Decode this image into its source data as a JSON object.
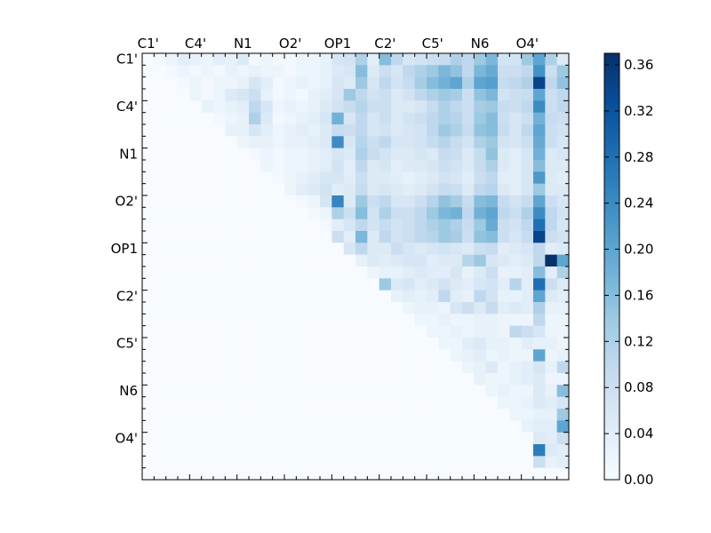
{
  "chart_data": {
    "type": "heatmap",
    "title": "",
    "xlabel": "",
    "ylabel": "",
    "n": 36,
    "x_tick_labels": [
      "C1'",
      "C4'",
      "N1",
      "O2'",
      "OP1",
      "C2'",
      "C5'",
      "N6",
      "O4'"
    ],
    "x_tick_label_position": "top",
    "y_tick_labels": [
      "C1'",
      "C4'",
      "N1",
      "O2'",
      "OP1",
      "C2'",
      "C5'",
      "N6",
      "O4'"
    ],
    "tick_label_every": 4,
    "value_range": [
      0,
      0.37
    ],
    "colormap": "Blues",
    "colormap_stops": [
      "#f7fbff",
      "#deebf7",
      "#c6dbef",
      "#9ecae1",
      "#6baed6",
      "#4292c6",
      "#2171b5",
      "#08519c",
      "#08306b"
    ],
    "colorbar": {
      "range": [
        0,
        0.37
      ],
      "ticks": [
        0.0,
        0.04,
        0.08,
        0.12,
        0.16,
        0.2,
        0.24,
        0.28,
        0.32,
        0.36
      ],
      "tick_labels": [
        "0.00",
        "0.04",
        "0.08",
        "0.12",
        "0.16",
        "0.20",
        "0.24",
        "0.28",
        "0.32",
        "0.36"
      ]
    },
    "rows": [
      [
        0.0,
        0.01,
        0.02,
        0.04,
        0.03,
        0.02,
        0.04,
        0.03,
        0.05,
        0.01,
        0.02,
        0.01,
        0.01,
        0.02,
        0.02,
        0.03,
        0.06,
        0.07,
        0.12,
        0.04,
        0.16,
        0.1,
        0.06,
        0.07,
        0.08,
        0.09,
        0.12,
        0.1,
        0.14,
        0.17,
        0.07,
        0.07,
        0.14,
        0.2,
        0.12,
        0.05
      ],
      [
        0,
        0,
        0.01,
        0.02,
        0.01,
        0.02,
        0.01,
        0.03,
        0.02,
        0.03,
        0.02,
        0.02,
        0.01,
        0.02,
        0.02,
        0.03,
        0.05,
        0.06,
        0.16,
        0.05,
        0.08,
        0.06,
        0.1,
        0.12,
        0.14,
        0.17,
        0.15,
        0.1,
        0.17,
        0.19,
        0.08,
        0.08,
        0.1,
        0.23,
        0.08,
        0.14
      ],
      [
        0,
        0,
        0,
        0.01,
        0.02,
        0.01,
        0.02,
        0.02,
        0.03,
        0.06,
        0.04,
        0.01,
        0.02,
        0.03,
        0.02,
        0.03,
        0.06,
        0.05,
        0.14,
        0.06,
        0.1,
        0.07,
        0.09,
        0.13,
        0.16,
        0.18,
        0.2,
        0.12,
        0.2,
        0.21,
        0.09,
        0.1,
        0.12,
        0.34,
        0.1,
        0.15
      ],
      [
        0,
        0,
        0,
        0,
        0.02,
        0.01,
        0.02,
        0.05,
        0.06,
        0.08,
        0.03,
        0.01,
        0.02,
        0.01,
        0.03,
        0.04,
        0.06,
        0.14,
        0.1,
        0.07,
        0.08,
        0.05,
        0.07,
        0.1,
        0.12,
        0.14,
        0.13,
        0.08,
        0.15,
        0.17,
        0.07,
        0.08,
        0.09,
        0.2,
        0.08,
        0.1
      ],
      [
        0,
        0,
        0,
        0,
        0,
        0.03,
        0.02,
        0.03,
        0.04,
        0.1,
        0.06,
        0.02,
        0.03,
        0.02,
        0.03,
        0.05,
        0.07,
        0.09,
        0.11,
        0.08,
        0.08,
        0.05,
        0.05,
        0.06,
        0.09,
        0.12,
        0.1,
        0.08,
        0.13,
        0.14,
        0.09,
        0.08,
        0.1,
        0.24,
        0.08,
        0.1
      ],
      [
        0,
        0,
        0,
        0,
        0,
        0,
        0.01,
        0.02,
        0.03,
        0.12,
        0.05,
        0.01,
        0.02,
        0.03,
        0.04,
        0.06,
        0.18,
        0.06,
        0.1,
        0.06,
        0.08,
        0.05,
        0.07,
        0.08,
        0.1,
        0.12,
        0.11,
        0.08,
        0.14,
        0.16,
        0.08,
        0.06,
        0.08,
        0.18,
        0.09,
        0.08
      ],
      [
        0,
        0,
        0,
        0,
        0,
        0,
        0,
        0.03,
        0.03,
        0.06,
        0.04,
        0.02,
        0.03,
        0.04,
        0.03,
        0.05,
        0.09,
        0.08,
        0.1,
        0.06,
        0.07,
        0.05,
        0.06,
        0.07,
        0.1,
        0.14,
        0.12,
        0.09,
        0.15,
        0.16,
        0.09,
        0.06,
        0.1,
        0.2,
        0.08,
        0.07
      ],
      [
        0,
        0,
        0,
        0,
        0,
        0,
        0,
        0,
        0.02,
        0.03,
        0.03,
        0.02,
        0.03,
        0.03,
        0.04,
        0.05,
        0.24,
        0.06,
        0.11,
        0.08,
        0.1,
        0.06,
        0.06,
        0.07,
        0.09,
        0.11,
        0.09,
        0.07,
        0.12,
        0.14,
        0.07,
        0.06,
        0.08,
        0.19,
        0.08,
        0.06
      ],
      [
        0,
        0,
        0,
        0,
        0,
        0,
        0,
        0,
        0,
        0.01,
        0.02,
        0.01,
        0.02,
        0.02,
        0.03,
        0.04,
        0.06,
        0.05,
        0.12,
        0.09,
        0.07,
        0.05,
        0.05,
        0.06,
        0.05,
        0.09,
        0.08,
        0.05,
        0.09,
        0.15,
        0.05,
        0.04,
        0.06,
        0.18,
        0.05,
        0.06
      ],
      [
        0,
        0,
        0,
        0,
        0,
        0,
        0,
        0,
        0,
        0,
        0.02,
        0.01,
        0.02,
        0.02,
        0.03,
        0.04,
        0.07,
        0.04,
        0.1,
        0.05,
        0.06,
        0.04,
        0.05,
        0.05,
        0.06,
        0.08,
        0.07,
        0.05,
        0.09,
        0.12,
        0.05,
        0.04,
        0.06,
        0.16,
        0.05,
        0.05
      ],
      [
        0,
        0,
        0,
        0,
        0,
        0,
        0,
        0,
        0,
        0,
        0,
        0.01,
        0.02,
        0.03,
        0.04,
        0.06,
        0.06,
        0.04,
        0.08,
        0.05,
        0.05,
        0.04,
        0.03,
        0.04,
        0.05,
        0.07,
        0.06,
        0.04,
        0.08,
        0.1,
        0.04,
        0.04,
        0.06,
        0.22,
        0.05,
        0.04
      ],
      [
        0,
        0,
        0,
        0,
        0,
        0,
        0,
        0,
        0,
        0,
        0,
        0,
        0.02,
        0.04,
        0.05,
        0.07,
        0.04,
        0.05,
        0.09,
        0.05,
        0.06,
        0.05,
        0.04,
        0.05,
        0.07,
        0.09,
        0.08,
        0.05,
        0.1,
        0.11,
        0.05,
        0.04,
        0.06,
        0.14,
        0.05,
        0.05
      ],
      [
        0,
        0,
        0,
        0,
        0,
        0,
        0,
        0,
        0,
        0,
        0,
        0,
        0,
        0.01,
        0.02,
        0.06,
        0.25,
        0.05,
        0.14,
        0.08,
        0.1,
        0.06,
        0.06,
        0.08,
        0.11,
        0.15,
        0.13,
        0.09,
        0.16,
        0.17,
        0.09,
        0.07,
        0.09,
        0.2,
        0.08,
        0.06
      ],
      [
        0,
        0,
        0,
        0,
        0,
        0,
        0,
        0,
        0,
        0,
        0,
        0,
        0,
        0,
        0.01,
        0.02,
        0.12,
        0.08,
        0.16,
        0.07,
        0.12,
        0.08,
        0.08,
        0.1,
        0.14,
        0.17,
        0.18,
        0.1,
        0.18,
        0.2,
        0.1,
        0.08,
        0.12,
        0.24,
        0.1,
        0.07
      ],
      [
        0,
        0,
        0,
        0,
        0,
        0,
        0,
        0,
        0,
        0,
        0,
        0,
        0,
        0,
        0,
        0.01,
        0.04,
        0.06,
        0.1,
        0.07,
        0.09,
        0.07,
        0.08,
        0.1,
        0.12,
        0.14,
        0.12,
        0.09,
        0.14,
        0.19,
        0.08,
        0.07,
        0.1,
        0.28,
        0.1,
        0.06
      ],
      [
        0,
        0,
        0,
        0,
        0,
        0,
        0,
        0,
        0,
        0,
        0,
        0,
        0,
        0,
        0,
        0,
        0.08,
        0.04,
        0.17,
        0.05,
        0.1,
        0.07,
        0.08,
        0.1,
        0.11,
        0.14,
        0.13,
        0.08,
        0.15,
        0.16,
        0.08,
        0.06,
        0.09,
        0.34,
        0.08,
        0.07
      ],
      [
        0,
        0,
        0,
        0,
        0,
        0,
        0,
        0,
        0,
        0,
        0,
        0,
        0,
        0,
        0,
        0,
        0,
        0.06,
        0.1,
        0.05,
        0.05,
        0.08,
        0.06,
        0.05,
        0.06,
        0.07,
        0.06,
        0.05,
        0.08,
        0.09,
        0.04,
        0.05,
        0.06,
        0.1,
        0.04,
        0.05
      ],
      [
        0,
        0,
        0,
        0,
        0,
        0,
        0,
        0,
        0,
        0,
        0,
        0,
        0,
        0,
        0,
        0,
        0,
        0,
        0.03,
        0.05,
        0.04,
        0.05,
        0.06,
        0.06,
        0.04,
        0.05,
        0.05,
        0.11,
        0.14,
        0.06,
        0.05,
        0.04,
        0.05,
        0.1,
        0.37,
        0.2
      ],
      [
        0,
        0,
        0,
        0,
        0,
        0,
        0,
        0,
        0,
        0,
        0,
        0,
        0,
        0,
        0,
        0,
        0,
        0,
        0,
        0.02,
        0.03,
        0.03,
        0.04,
        0.05,
        0.04,
        0.04,
        0.06,
        0.03,
        0.05,
        0.08,
        0.03,
        0.03,
        0.04,
        0.16,
        0.04,
        0.12
      ],
      [
        0,
        0,
        0,
        0,
        0,
        0,
        0,
        0,
        0,
        0,
        0,
        0,
        0,
        0,
        0,
        0,
        0,
        0,
        0,
        0,
        0.14,
        0.05,
        0.06,
        0.04,
        0.05,
        0.07,
        0.05,
        0.04,
        0.06,
        0.07,
        0.04,
        0.11,
        0.04,
        0.28,
        0.08,
        0.05
      ],
      [
        0,
        0,
        0,
        0,
        0,
        0,
        0,
        0,
        0,
        0,
        0,
        0,
        0,
        0,
        0,
        0,
        0,
        0,
        0,
        0,
        0,
        0.03,
        0.04,
        0.03,
        0.04,
        0.1,
        0.04,
        0.03,
        0.1,
        0.07,
        0.03,
        0.03,
        0.04,
        0.2,
        0.05,
        0.04
      ],
      [
        0,
        0,
        0,
        0,
        0,
        0,
        0,
        0,
        0,
        0,
        0,
        0,
        0,
        0,
        0,
        0,
        0,
        0,
        0,
        0,
        0,
        0,
        0.02,
        0.03,
        0.03,
        0.02,
        0.06,
        0.08,
        0.05,
        0.09,
        0.04,
        0.05,
        0.04,
        0.12,
        0.03,
        0.03
      ],
      [
        0,
        0,
        0,
        0,
        0,
        0,
        0,
        0,
        0,
        0,
        0,
        0,
        0,
        0,
        0,
        0,
        0,
        0,
        0,
        0,
        0,
        0,
        0,
        0.02,
        0.02,
        0.03,
        0.02,
        0.02,
        0.03,
        0.03,
        0.02,
        0.02,
        0.02,
        0.1,
        0.02,
        0.02
      ],
      [
        0,
        0,
        0,
        0,
        0,
        0,
        0,
        0,
        0,
        0,
        0,
        0,
        0,
        0,
        0,
        0,
        0,
        0,
        0,
        0,
        0,
        0,
        0,
        0,
        0.02,
        0.02,
        0.03,
        0.02,
        0.03,
        0.03,
        0.02,
        0.1,
        0.08,
        0.06,
        0.02,
        0.02
      ],
      [
        0,
        0,
        0,
        0,
        0,
        0,
        0,
        0,
        0,
        0,
        0,
        0,
        0,
        0,
        0,
        0,
        0,
        0,
        0,
        0,
        0,
        0,
        0,
        0,
        0,
        0.02,
        0.02,
        0.04,
        0.05,
        0.03,
        0.03,
        0.02,
        0.04,
        0.03,
        0.03,
        0.02
      ],
      [
        0,
        0,
        0,
        0,
        0,
        0,
        0,
        0,
        0,
        0,
        0,
        0,
        0,
        0,
        0,
        0,
        0,
        0,
        0,
        0,
        0,
        0,
        0,
        0,
        0,
        0,
        0.02,
        0.03,
        0.04,
        0.02,
        0.03,
        0.02,
        0.02,
        0.2,
        0.02,
        0.03
      ],
      [
        0,
        0,
        0,
        0,
        0,
        0,
        0,
        0,
        0,
        0,
        0,
        0,
        0,
        0,
        0,
        0,
        0,
        0,
        0,
        0,
        0,
        0,
        0,
        0,
        0,
        0,
        0,
        0.02,
        0.03,
        0.05,
        0.02,
        0.03,
        0.04,
        0.06,
        0.03,
        0.1
      ],
      [
        0,
        0,
        0,
        0,
        0,
        0,
        0,
        0,
        0,
        0,
        0,
        0,
        0,
        0,
        0,
        0,
        0,
        0,
        0,
        0,
        0,
        0,
        0,
        0,
        0,
        0,
        0,
        0,
        0.03,
        0.02,
        0.02,
        0.03,
        0.04,
        0.05,
        0.02,
        0.02
      ],
      [
        0,
        0,
        0,
        0,
        0,
        0,
        0,
        0,
        0,
        0,
        0,
        0,
        0,
        0,
        0,
        0,
        0,
        0,
        0,
        0,
        0,
        0,
        0,
        0,
        0,
        0,
        0,
        0,
        0,
        0.02,
        0.03,
        0.02,
        0.02,
        0.05,
        0.03,
        0.16
      ],
      [
        0,
        0,
        0,
        0,
        0,
        0,
        0,
        0,
        0,
        0,
        0,
        0,
        0,
        0,
        0,
        0,
        0,
        0,
        0,
        0,
        0,
        0,
        0,
        0,
        0,
        0,
        0,
        0,
        0,
        0,
        0.02,
        0.02,
        0.03,
        0.05,
        0.04,
        0.06
      ],
      [
        0,
        0,
        0,
        0,
        0,
        0,
        0,
        0,
        0,
        0,
        0,
        0,
        0,
        0,
        0,
        0,
        0,
        0,
        0,
        0,
        0,
        0,
        0,
        0,
        0,
        0,
        0,
        0,
        0,
        0,
        0,
        0.02,
        0.02,
        0.03,
        0.03,
        0.14
      ],
      [
        0,
        0,
        0,
        0,
        0,
        0,
        0,
        0,
        0,
        0,
        0,
        0,
        0,
        0,
        0,
        0,
        0,
        0,
        0,
        0,
        0,
        0,
        0,
        0,
        0,
        0,
        0,
        0,
        0,
        0,
        0,
        0,
        0.03,
        0.04,
        0.04,
        0.2
      ],
      [
        0,
        0,
        0,
        0,
        0,
        0,
        0,
        0,
        0,
        0,
        0,
        0,
        0,
        0,
        0,
        0,
        0,
        0,
        0,
        0,
        0,
        0,
        0,
        0,
        0,
        0,
        0,
        0,
        0,
        0,
        0,
        0,
        0,
        0.05,
        0.04,
        0.08
      ],
      [
        0,
        0,
        0,
        0,
        0,
        0,
        0,
        0,
        0,
        0,
        0,
        0,
        0,
        0,
        0,
        0,
        0,
        0,
        0,
        0,
        0,
        0,
        0,
        0,
        0,
        0,
        0,
        0,
        0,
        0,
        0,
        0,
        0,
        0.26,
        0.05,
        0.04
      ],
      [
        0,
        0,
        0,
        0,
        0,
        0,
        0,
        0,
        0,
        0,
        0,
        0,
        0,
        0,
        0,
        0,
        0,
        0,
        0,
        0,
        0,
        0,
        0,
        0,
        0,
        0,
        0,
        0,
        0,
        0,
        0,
        0,
        0,
        0.08,
        0.03,
        0.04
      ],
      [
        0,
        0,
        0,
        0,
        0,
        0,
        0,
        0,
        0,
        0,
        0,
        0,
        0,
        0,
        0,
        0,
        0,
        0,
        0,
        0,
        0,
        0,
        0,
        0,
        0,
        0,
        0,
        0,
        0,
        0,
        0,
        0,
        0,
        0,
        0,
        0
      ]
    ]
  }
}
